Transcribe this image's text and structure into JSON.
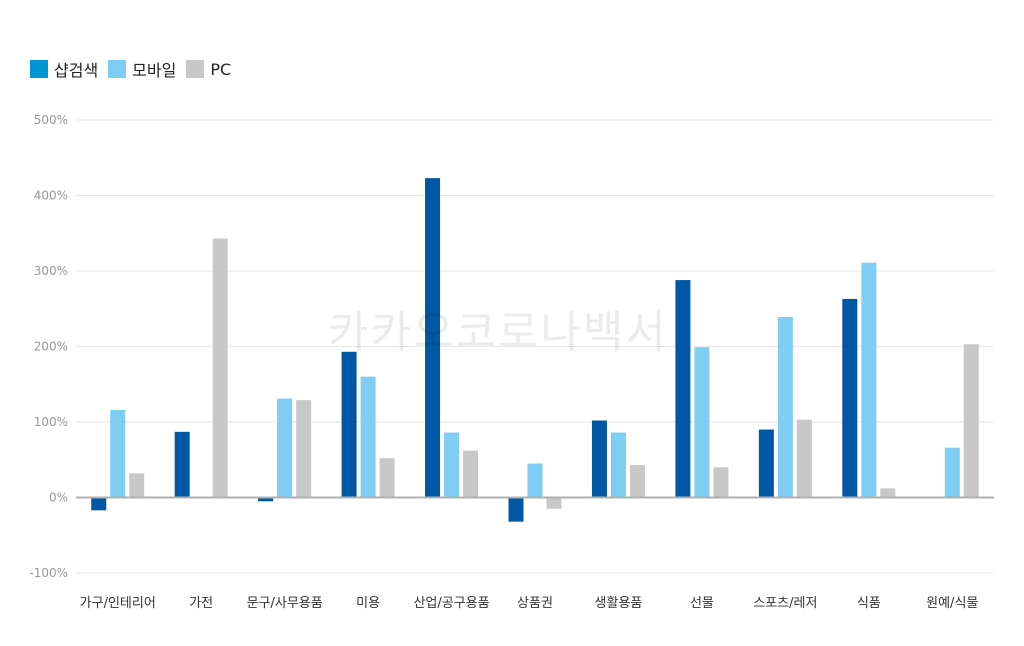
{
  "legend": {
    "items": [
      {
        "label": "샵검색",
        "color": "#0096d6"
      },
      {
        "label": "모바일",
        "color": "#7ecef4"
      },
      {
        "label": "PC",
        "color": "#c8c8c8"
      }
    ]
  },
  "watermark": "카카오코로나백서",
  "chart_data": {
    "type": "bar",
    "categories": [
      "가구/인테리어",
      "가전",
      "문구/사무용품",
      "미용",
      "산업/공구용품",
      "상품권",
      "생활용품",
      "선물",
      "스포츠/레저",
      "식품",
      "원예/식물"
    ],
    "series": [
      {
        "name": "샵검색",
        "color": "#0057a3",
        "values": [
          -17,
          87,
          -5,
          193,
          423,
          -32,
          102,
          288,
          90,
          263,
          null
        ]
      },
      {
        "name": "모바일",
        "color": "#7ecef4",
        "values": [
          116,
          null,
          131,
          160,
          86,
          45,
          86,
          199,
          239,
          311,
          66
        ]
      },
      {
        "name": "PC",
        "color": "#c8c8c8",
        "values": [
          32,
          343,
          129,
          52,
          62,
          -15,
          43,
          40,
          103,
          12,
          203
        ]
      }
    ],
    "yticks": [
      "500%",
      "400%",
      "300%",
      "200%",
      "100%",
      "0%",
      "-100%"
    ],
    "ylim": [
      -100,
      500
    ],
    "grid": true,
    "legend_position": "top-left"
  }
}
